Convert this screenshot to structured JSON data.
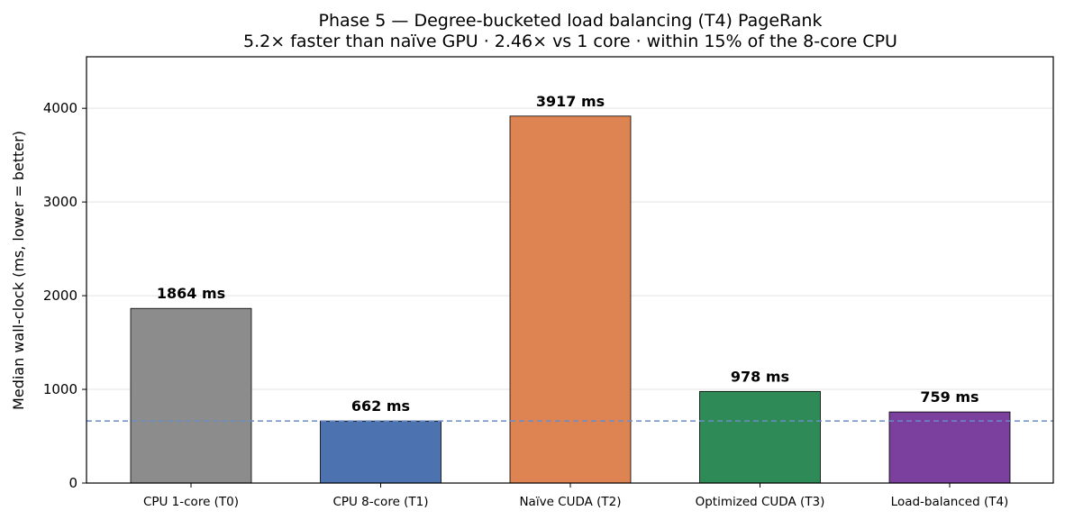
{
  "chart_data": {
    "type": "bar",
    "title": "Phase 5 — Degree-bucketed load balancing (T4) PageRank",
    "subtitle": "5.2× faster than naïve GPU · 2.46× vs 1 core · within 15% of the 8-core CPU",
    "xlabel": "",
    "ylabel": "Median wall-clock (ms, lower = better)",
    "categories": [
      "CPU 1-core (T0)",
      "CPU 8-core (T1)",
      "Naïve CUDA (T2)",
      "Optimized CUDA (T3)",
      "Load-balanced (T4)"
    ],
    "values": [
      1864,
      662,
      3917,
      978,
      759
    ],
    "data_labels": [
      "1864 ms",
      "662 ms",
      "3917 ms",
      "978 ms",
      "759 ms"
    ],
    "colors": [
      "#8c8c8c",
      "#4c72b0",
      "#dd8452",
      "#2e8b57",
      "#7b3f9e"
    ],
    "yticks": [
      "0",
      "1000",
      "2000",
      "3000",
      "4000"
    ],
    "ylim": [
      0,
      4550
    ],
    "grid": "horizontal",
    "reference_line": {
      "value": 662,
      "style": "dashed",
      "color": "#6b8cc4"
    }
  }
}
